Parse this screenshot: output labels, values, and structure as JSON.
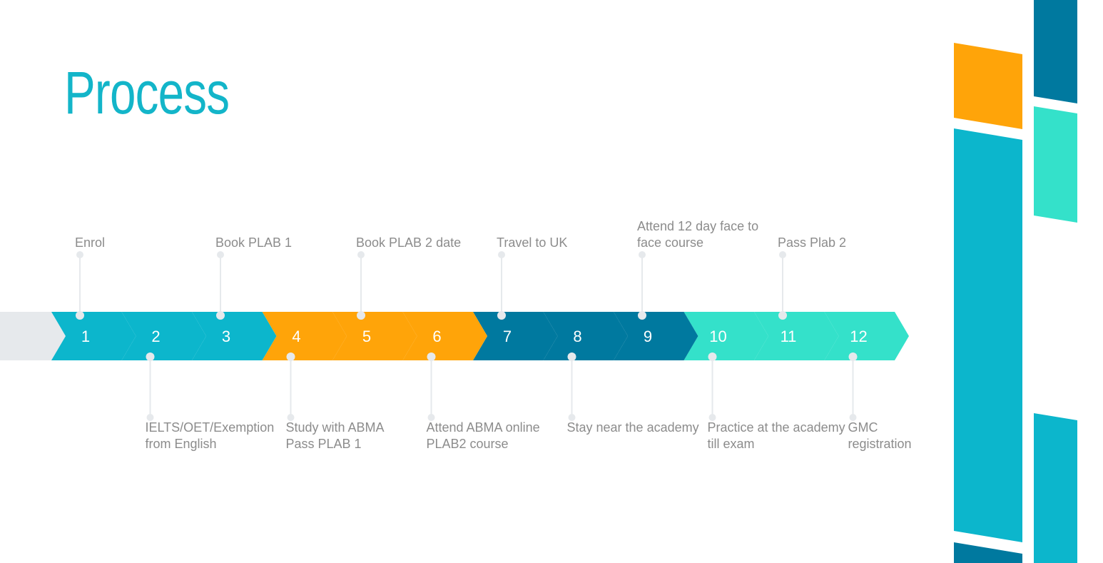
{
  "title": "Process",
  "colors": {
    "title": "#13B5C9",
    "stem": "#E6E9EC",
    "dot": "#E6E9EC",
    "start_block": "#E6E9EC",
    "step_text": "#FFFFFF",
    "label_text": "#8C8C8C",
    "deco_orange": "#FFA409",
    "deco_teal": "#0CB6CC",
    "deco_dark": "#00799F",
    "deco_mint": "#34E1CA"
  },
  "steps": [
    {
      "number": "1",
      "label": "Enrol",
      "side": "top",
      "color": "#0CB6CC"
    },
    {
      "number": "2",
      "label": "IELTS/OET/Exemption\nfrom English",
      "side": "bottom",
      "color": "#0CB6CC"
    },
    {
      "number": "3",
      "label": "Book PLAB 1",
      "side": "top",
      "color": "#0CB6CC"
    },
    {
      "number": "4",
      "label": "Study with ABMA\nPass PLAB 1",
      "side": "bottom",
      "color": "#FFA409"
    },
    {
      "number": "5",
      "label": "Book PLAB 2 date",
      "side": "top",
      "color": "#FFA409"
    },
    {
      "number": "6",
      "label": "Attend ABMA online\nPLAB2 course",
      "side": "bottom",
      "color": "#FFA409"
    },
    {
      "number": "7",
      "label": "Travel to UK",
      "side": "top",
      "color": "#00799F"
    },
    {
      "number": "8",
      "label": "Stay near the academy",
      "side": "bottom",
      "color": "#00799F"
    },
    {
      "number": "9",
      "label": "Attend 12 day face to\nface course",
      "side": "top",
      "color": "#00799F"
    },
    {
      "number": "10",
      "label": "Practice at the academy\ntill exam",
      "side": "bottom",
      "color": "#34E1CA"
    },
    {
      "number": "11",
      "label": "Pass Plab 2",
      "side": "top",
      "color": "#34E1CA"
    },
    {
      "number": "12",
      "label": "GMC\nregistration",
      "side": "bottom",
      "color": "#34E1CA"
    }
  ]
}
